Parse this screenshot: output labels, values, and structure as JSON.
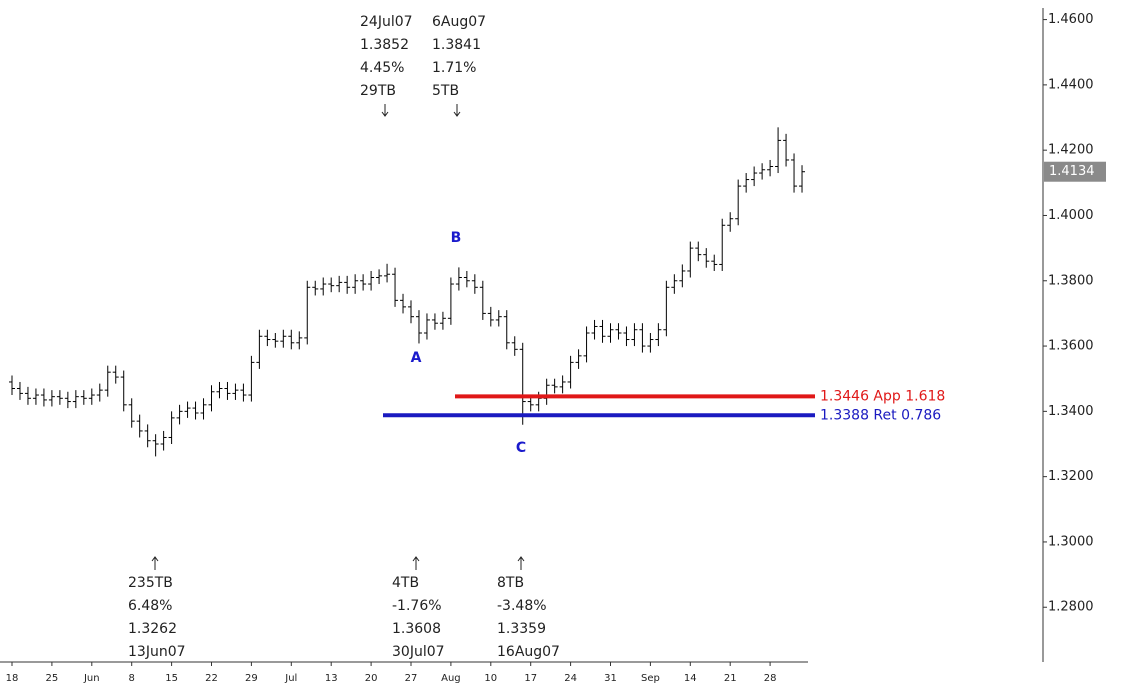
{
  "chart_data": {
    "type": "ohlc",
    "color": "#000000",
    "categories": [
      "18",
      null,
      null,
      null,
      null,
      "25",
      null,
      null,
      null,
      null,
      "Jun",
      null,
      null,
      null,
      null,
      "8",
      null,
      null,
      null,
      null,
      "15",
      null,
      null,
      null,
      null,
      "22",
      null,
      null,
      null,
      null,
      "29",
      null,
      null,
      null,
      null,
      "Jul",
      null,
      null,
      null,
      null,
      "13",
      null,
      null,
      null,
      null,
      "20",
      null,
      null,
      null,
      null,
      "27",
      null,
      null,
      null,
      null,
      "Aug",
      null,
      null,
      null,
      null,
      "10",
      null,
      null,
      null,
      null,
      "17",
      null,
      null,
      null,
      null,
      "24",
      null,
      null,
      null,
      null,
      "31",
      null,
      null,
      null,
      null,
      "Sep",
      null,
      null,
      null,
      null,
      "14",
      null,
      null,
      null,
      null,
      "21",
      null,
      null,
      null,
      null,
      "28",
      null,
      null,
      null,
      null
    ],
    "open": [
      1.349,
      1.347,
      1.3455,
      1.344,
      1.345,
      1.3435,
      1.3445,
      1.344,
      1.343,
      1.3445,
      1.344,
      1.345,
      1.3465,
      1.352,
      1.3505,
      1.342,
      1.337,
      1.334,
      1.331,
      1.33,
      1.332,
      1.338,
      1.34,
      1.341,
      1.3395,
      1.342,
      1.346,
      1.347,
      1.3455,
      1.3465,
      1.345,
      1.355,
      1.363,
      1.362,
      1.3615,
      1.363,
      1.361,
      1.3625,
      1.378,
      1.3775,
      1.379,
      1.3785,
      1.3795,
      1.378,
      1.38,
      1.379,
      1.381,
      1.3815,
      1.382,
      1.374,
      1.372,
      1.369,
      1.364,
      1.368,
      1.367,
      1.3685,
      1.379,
      1.381,
      1.38,
      1.378,
      1.37,
      1.368,
      1.369,
      1.361,
      1.359,
      1.343,
      1.342,
      1.344,
      1.348,
      1.3475,
      1.349,
      1.355,
      1.357,
      1.364,
      1.366,
      1.363,
      1.365,
      1.364,
      1.362,
      1.365,
      1.36,
      1.362,
      1.365,
      1.378,
      1.38,
      1.383,
      1.39,
      1.388,
      1.386,
      1.385,
      1.397,
      1.399,
      1.409,
      1.411,
      1.413,
      1.414,
      1.415,
      1.423,
      1.417,
      1.409
    ],
    "high": [
      1.351,
      1.349,
      1.3475,
      1.347,
      1.347,
      1.3465,
      1.3465,
      1.346,
      1.3465,
      1.3465,
      1.347,
      1.3485,
      1.354,
      1.354,
      1.3525,
      1.344,
      1.339,
      1.336,
      1.333,
      1.334,
      1.34,
      1.342,
      1.343,
      1.343,
      1.344,
      1.348,
      1.349,
      1.349,
      1.3485,
      1.3485,
      1.357,
      1.365,
      1.365,
      1.364,
      1.365,
      1.365,
      1.3645,
      1.38,
      1.38,
      1.381,
      1.381,
      1.3815,
      1.3815,
      1.382,
      1.382,
      1.383,
      1.3835,
      1.3852,
      1.384,
      1.376,
      1.374,
      1.371,
      1.37,
      1.37,
      1.3705,
      1.381,
      1.3841,
      1.383,
      1.382,
      1.38,
      1.372,
      1.371,
      1.371,
      1.363,
      1.361,
      1.345,
      1.346,
      1.35,
      1.35,
      1.351,
      1.357,
      1.359,
      1.366,
      1.368,
      1.368,
      1.367,
      1.367,
      1.366,
      1.367,
      1.367,
      1.364,
      1.367,
      1.38,
      1.382,
      1.385,
      1.392,
      1.392,
      1.39,
      1.388,
      1.399,
      1.401,
      1.411,
      1.413,
      1.415,
      1.416,
      1.417,
      1.427,
      1.425,
      1.419,
      1.4154
    ],
    "low": [
      1.345,
      1.3435,
      1.342,
      1.342,
      1.3415,
      1.3415,
      1.342,
      1.341,
      1.341,
      1.342,
      1.342,
      1.343,
      1.3445,
      1.3485,
      1.34,
      1.335,
      1.332,
      1.329,
      1.3262,
      1.328,
      1.33,
      1.336,
      1.338,
      1.3375,
      1.3375,
      1.34,
      1.344,
      1.3435,
      1.3435,
      1.343,
      1.343,
      1.353,
      1.36,
      1.3595,
      1.3595,
      1.359,
      1.359,
      1.3605,
      1.3755,
      1.3755,
      1.3765,
      1.3765,
      1.376,
      1.376,
      1.377,
      1.377,
      1.379,
      1.3795,
      1.372,
      1.37,
      1.367,
      1.3608,
      1.362,
      1.365,
      1.365,
      1.3665,
      1.377,
      1.378,
      1.376,
      1.368,
      1.366,
      1.366,
      1.359,
      1.357,
      1.3359,
      1.34,
      1.34,
      1.342,
      1.3455,
      1.3455,
      1.347,
      1.353,
      1.355,
      1.362,
      1.361,
      1.361,
      1.362,
      1.36,
      1.36,
      1.358,
      1.358,
      1.36,
      1.363,
      1.376,
      1.378,
      1.381,
      1.386,
      1.384,
      1.383,
      1.383,
      1.395,
      1.397,
      1.407,
      1.409,
      1.411,
      1.412,
      1.413,
      1.415,
      1.407,
      1.407
    ],
    "close": [
      1.347,
      1.3455,
      1.344,
      1.345,
      1.3435,
      1.3445,
      1.344,
      1.343,
      1.3445,
      1.344,
      1.345,
      1.3465,
      1.352,
      1.3505,
      1.342,
      1.337,
      1.334,
      1.331,
      1.33,
      1.332,
      1.338,
      1.34,
      1.341,
      1.3395,
      1.342,
      1.346,
      1.347,
      1.3455,
      1.3465,
      1.345,
      1.355,
      1.363,
      1.362,
      1.3615,
      1.363,
      1.361,
      1.3625,
      1.378,
      1.3775,
      1.379,
      1.3785,
      1.3795,
      1.378,
      1.38,
      1.379,
      1.381,
      1.3815,
      1.382,
      1.374,
      1.372,
      1.369,
      1.364,
      1.368,
      1.367,
      1.3685,
      1.379,
      1.381,
      1.38,
      1.378,
      1.37,
      1.368,
      1.369,
      1.361,
      1.359,
      1.343,
      1.342,
      1.344,
      1.348,
      1.3475,
      1.349,
      1.355,
      1.357,
      1.364,
      1.366,
      1.363,
      1.365,
      1.364,
      1.362,
      1.365,
      1.36,
      1.362,
      1.365,
      1.378,
      1.38,
      1.383,
      1.39,
      1.388,
      1.386,
      1.385,
      1.397,
      1.399,
      1.409,
      1.411,
      1.413,
      1.414,
      1.415,
      1.423,
      1.417,
      1.409,
      1.4134
    ],
    "ylim": [
      1.262,
      1.466
    ],
    "yticks": [
      {
        "value": 1.46,
        "label": "1.4600"
      },
      {
        "value": 1.44,
        "label": "1.4400"
      },
      {
        "value": 1.42,
        "label": "1.4200"
      },
      {
        "value": 1.4,
        "label": "1.4000"
      },
      {
        "value": 1.38,
        "label": "1.3800"
      },
      {
        "value": 1.36,
        "label": "1.3600"
      },
      {
        "value": 1.34,
        "label": "1.3400"
      },
      {
        "value": 1.32,
        "label": "1.3200"
      },
      {
        "value": 1.3,
        "label": "1.3000"
      },
      {
        "value": 1.28,
        "label": "1.2800"
      }
    ],
    "levels": [
      {
        "value": 1.3446,
        "label": "1.3446 App 1.618",
        "color": "#e01818"
      },
      {
        "value": 1.3388,
        "label": "1.3388 Ret 0.786",
        "color": "#1a1ac0"
      }
    ],
    "waves": [
      "A",
      "B",
      "C"
    ],
    "top_annotations": [
      [
        "24Jul07",
        "1.3852",
        "4.45%",
        "29TB"
      ],
      [
        "6Aug07",
        "1.3841",
        "1.71%",
        "5TB"
      ]
    ],
    "bottom_annotations": [
      [
        "235TB",
        "6.48%",
        "1.3262",
        "13Jun07"
      ],
      [
        "4TB",
        "-1.76%",
        "1.3608",
        "30Jul07"
      ],
      [
        "8TB",
        "-3.48%",
        "1.3359",
        "16Aug07"
      ]
    ]
  }
}
